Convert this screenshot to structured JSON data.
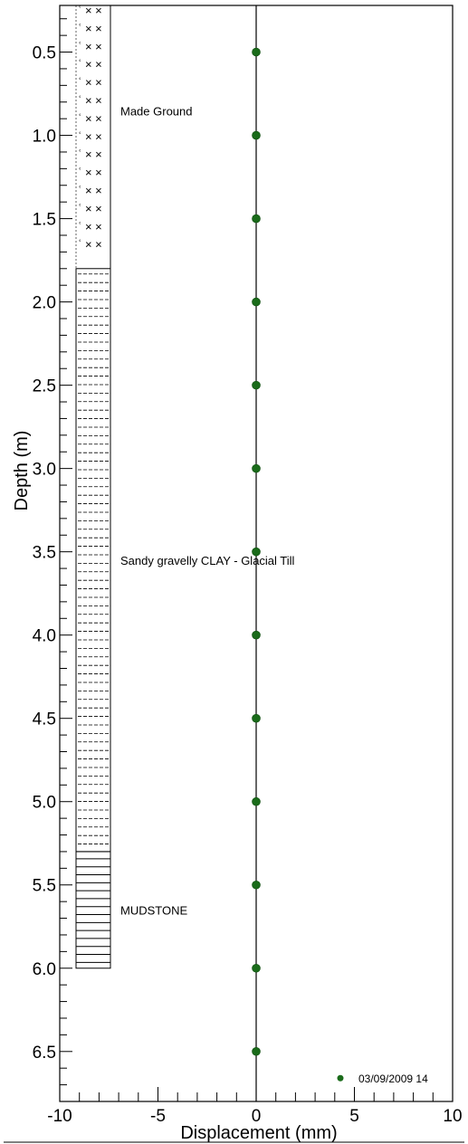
{
  "chart_data": {
    "type": "scatter",
    "xlabel": "Displacement (mm)",
    "ylabel": "Depth (m)",
    "xlim": [
      -10,
      10
    ],
    "ylim": [
      6.8,
      0.22
    ],
    "x_ticks": [
      -10,
      -5,
      0,
      5,
      10
    ],
    "x_tick_labels": [
      "-10",
      "-5",
      "0",
      "5",
      "10"
    ],
    "y_ticks": [
      0.5,
      1.0,
      1.5,
      2.0,
      2.5,
      3.0,
      3.5,
      4.0,
      4.5,
      5.0,
      5.5,
      6.0,
      6.5
    ],
    "y_tick_labels": [
      "0.5",
      "1.0",
      "1.5",
      "2.0",
      "2.5",
      "3.0",
      "3.5",
      "4.0",
      "4.5",
      "5.0",
      "5.5",
      "6.0",
      "6.5"
    ],
    "series": [
      {
        "name": "03/09/2009 14",
        "color": "#1a6b1a",
        "points": [
          {
            "x": 0,
            "y": 0.5
          },
          {
            "x": 0,
            "y": 1.0
          },
          {
            "x": 0,
            "y": 1.5
          },
          {
            "x": 0,
            "y": 2.0
          },
          {
            "x": 0,
            "y": 2.5
          },
          {
            "x": 0,
            "y": 3.0
          },
          {
            "x": 0,
            "y": 3.5
          },
          {
            "x": 0,
            "y": 4.0
          },
          {
            "x": 0,
            "y": 4.5
          },
          {
            "x": 0,
            "y": 5.0
          },
          {
            "x": 0,
            "y": 5.5
          },
          {
            "x": 0,
            "y": 6.0
          },
          {
            "x": 0,
            "y": 6.5
          }
        ]
      }
    ],
    "strata": [
      {
        "name": "Made Ground",
        "top": 0.22,
        "bottom": 1.8,
        "pattern": "crosses"
      },
      {
        "name": "Sandy gravelly CLAY - Glacial Till",
        "top": 1.8,
        "bottom": 5.3,
        "pattern": "dashes"
      },
      {
        "name": "MUDSTONE",
        "top": 5.3,
        "bottom": 6.0,
        "pattern": "lines"
      }
    ],
    "legend_position": "bottom-right",
    "grid": false,
    "reference_line_x": 0
  }
}
